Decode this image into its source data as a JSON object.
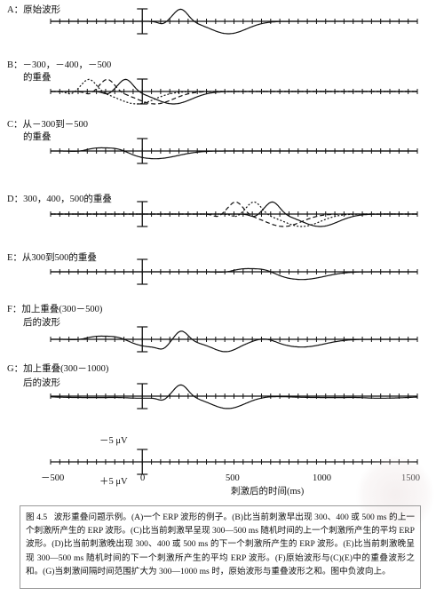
{
  "panels": [
    {
      "id": "A",
      "label": "A：原始波形",
      "sublabel": ""
    },
    {
      "id": "B",
      "label": "B：－300，－400，－500",
      "sublabel": "的重叠"
    },
    {
      "id": "C",
      "label": "C：从－300到－500",
      "sublabel": "的重叠"
    },
    {
      "id": "D",
      "label": "D：300，400，500的重叠",
      "sublabel": ""
    },
    {
      "id": "E",
      "label": "E：从300到500的重叠",
      "sublabel": ""
    },
    {
      "id": "F",
      "label": "F：加上重叠(300－500)",
      "sublabel": "后的波形"
    },
    {
      "id": "G",
      "label": "G：加上重叠(300－1000)",
      "sublabel": "后的波形"
    }
  ],
  "scale": {
    "minus_label": "－5 μV",
    "plus_label": "＋5 μV",
    "x_ticks": [
      "－500",
      "0",
      "500",
      "1000",
      "1500"
    ],
    "x_title": "刺激后的时间(ms)"
  },
  "caption": {
    "fig_no": "图 4.5",
    "text": "波形重叠问题示例。(A)一个 ERP 波形的例子。(B)比当前刺激早出现 300、400 或 500 ms 的上一个刺激所产生的 ERP 波形。(C)比当前刺激早呈现 300—500 ms 随机时间的上一个刺激所产生的平均 ERP 波形。(D)比当前刺激晚出现 300、400 或 500 ms 的下一个刺激所产生的 ERP 波形。(E)比当前刺激晚呈现 300—500 ms 随机时间的下一个刺激所产生的平均 ERP 波形。(F)原始波形与(C)(E)中的重叠波形之和。(G)当刺激间隔时间范围扩大为 300—1000 ms 时，原始波形与重叠波形之和。图中负波向上。"
  },
  "colors": {
    "line": "#111111",
    "ink": "#111111"
  }
}
